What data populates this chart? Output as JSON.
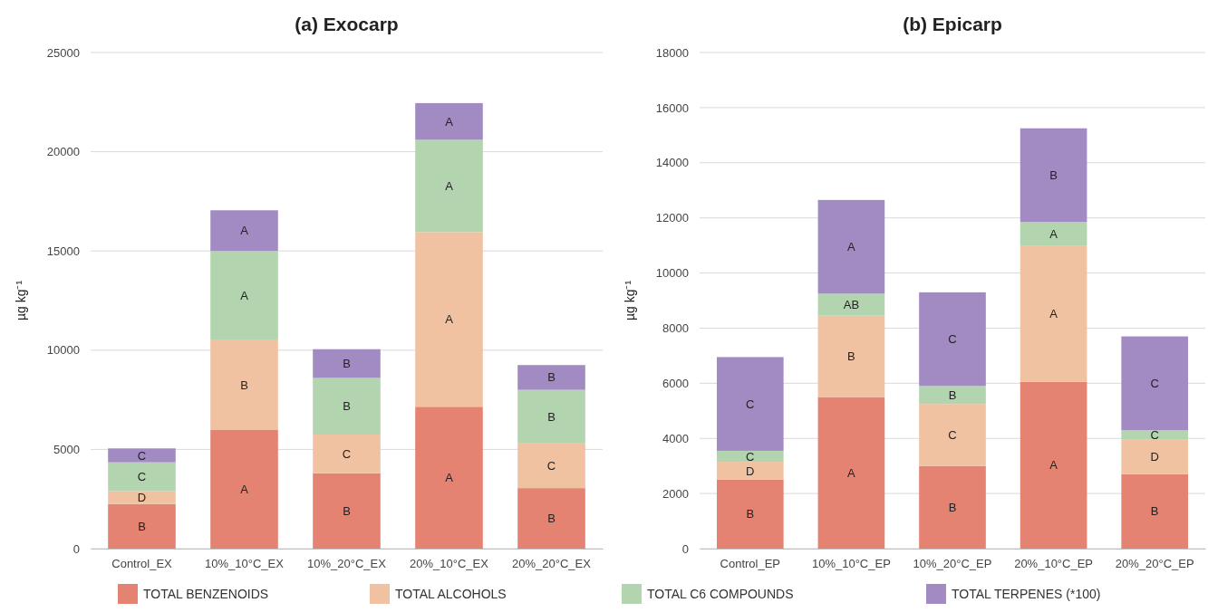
{
  "chart_data": [
    {
      "type": "bar",
      "title": "(a) Exocarp",
      "ylabel": "µg kg⁻¹",
      "stacked": true,
      "grid": "y",
      "legend": "bottom",
      "categories": [
        "Control_EX",
        "10%_10°C_EX",
        "10%_20°C_EX",
        "20%_10°C_EX",
        "20%_20°C_EX"
      ],
      "ylim": [
        0,
        25000
      ],
      "yticks": [
        0,
        5000,
        10000,
        15000,
        20000,
        25000
      ],
      "series": [
        {
          "name": "TOTAL BENZENOIDS",
          "color": "#e48371",
          "values": [
            2250,
            6000,
            3800,
            7150,
            3050
          ],
          "value_labels": [
            "B",
            "A",
            "B",
            "A",
            "B"
          ]
        },
        {
          "name": "TOTAL ALCOHOLS",
          "color": "#f1c2a1",
          "values": [
            650,
            4500,
            1950,
            8800,
            2250
          ],
          "value_labels": [
            "D",
            "B",
            "C",
            "A",
            "C"
          ]
        },
        {
          "name": "TOTAL C6 COMPOUNDS",
          "color": "#b2d4ae",
          "values": [
            1450,
            4500,
            2850,
            4650,
            2700
          ],
          "value_labels": [
            "C",
            "A",
            "B",
            "A",
            "B"
          ]
        },
        {
          "name": "TOTAL TERPENES (*100)",
          "color": "#a28bc3",
          "values": [
            700,
            2050,
            1450,
            1850,
            1250
          ],
          "value_labels": [
            "C",
            "A",
            "B",
            "A",
            "B"
          ]
        }
      ]
    },
    {
      "type": "bar",
      "title": "(b) Epicarp",
      "ylabel": "µg kg⁻¹",
      "stacked": true,
      "grid": "y",
      "categories": [
        "Control_EP",
        "10%_10°C_EP",
        "10%_20°C_EP",
        "20%_10°C_EP",
        "20%_20°C_EP"
      ],
      "ylim": [
        0,
        18000
      ],
      "yticks": [
        0,
        2000,
        4000,
        6000,
        8000,
        10000,
        12000,
        14000,
        16000,
        18000
      ],
      "series": [
        {
          "color": "#e48371",
          "values": [
            2500,
            5500,
            3000,
            6050,
            2700
          ],
          "value_labels": [
            "B",
            "A",
            "B",
            "A",
            "B"
          ]
        },
        {
          "color": "#f1c2a1",
          "values": [
            650,
            2950,
            2250,
            4950,
            1250
          ],
          "value_labels": [
            "D",
            "B",
            "C",
            "A",
            "D"
          ]
        },
        {
          "color": "#b2d4ae",
          "values": [
            400,
            800,
            650,
            850,
            350
          ],
          "value_labels": [
            "C",
            "AB",
            "B",
            "A",
            "C"
          ]
        },
        {
          "color": "#a28bc3",
          "values": [
            3400,
            3400,
            3400,
            3400,
            3400
          ],
          "value_labels": [
            "C",
            "A",
            "C",
            "B",
            "C"
          ]
        }
      ]
    }
  ]
}
